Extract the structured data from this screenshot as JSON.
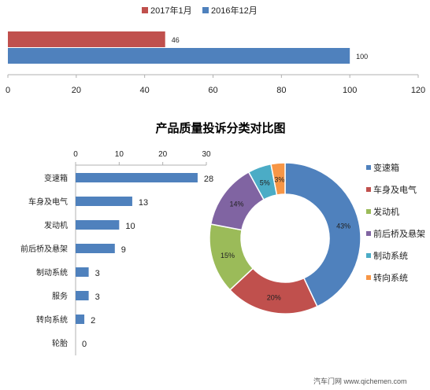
{
  "chart_data": [
    {
      "type": "bar",
      "orientation": "horizontal",
      "series": [
        {
          "name": "2017年1月",
          "values": [
            46
          ],
          "color": "#c0504d"
        },
        {
          "name": "2016年12月",
          "values": [
            100
          ],
          "color": "#4f81bd"
        }
      ],
      "xlim": [
        0,
        120
      ],
      "ticks": [
        0,
        20,
        40,
        60,
        80,
        100,
        120
      ],
      "legend_position": "top",
      "grid": false
    },
    {
      "type": "bar",
      "orientation": "horizontal",
      "title": "产品质量投诉分类对比图",
      "categories": [
        "变速箱",
        "车身及电气",
        "发动机",
        "前后桥及悬架",
        "制动系统",
        "服务",
        "转向系统",
        "轮胎"
      ],
      "values": [
        28,
        13,
        10,
        9,
        3,
        3,
        2,
        0
      ],
      "xlim": [
        0,
        30
      ],
      "ticks": [
        0,
        10,
        20,
        30
      ],
      "axis_position": "top",
      "color": "#4f81bd",
      "grid": false
    },
    {
      "type": "pie",
      "style": "donut",
      "labels": [
        "变速箱",
        "车身及电气",
        "发动机",
        "前后桥及悬架",
        "制动系统",
        "转向系统"
      ],
      "values": [
        43,
        20,
        15,
        14,
        5,
        3
      ],
      "value_labels": [
        "43%",
        "20%",
        "15%",
        "14%",
        "5%",
        "3%"
      ],
      "colors": [
        "#4f81bd",
        "#c0504d",
        "#9bbb59",
        "#8064a2",
        "#4bacc6",
        "#f79646"
      ],
      "legend_position": "right"
    }
  ],
  "watermark": "汽车门网 www.qichemen.com"
}
